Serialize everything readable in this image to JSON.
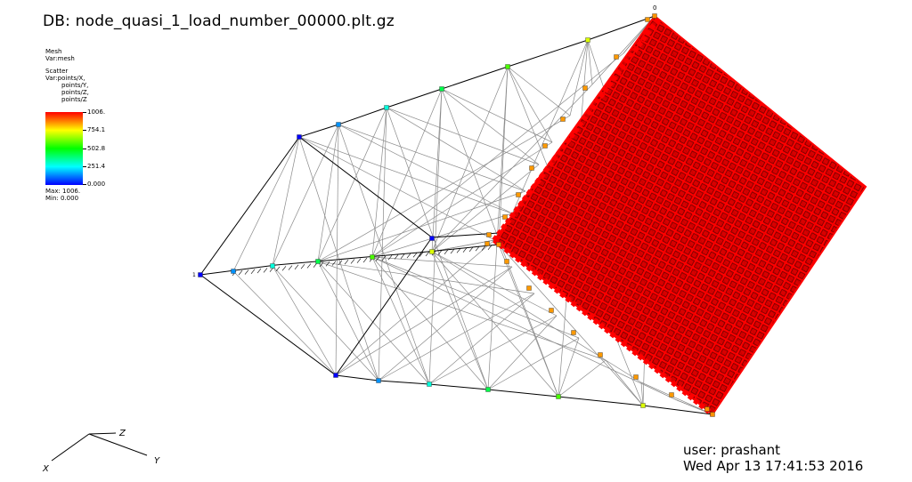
{
  "header": {
    "db_title": "DB: node_quasi_1_load_number_00000.plt.gz"
  },
  "legend": {
    "mesh_title": "Mesh",
    "mesh_var": "Var:mesh",
    "scatter_title": "Scatter",
    "scatter_vars": [
      "Var:points/X,",
      "points/Y,",
      "points/Z,",
      "points/Z"
    ],
    "ticks": [
      "1006.",
      "754.1",
      "502.8",
      "251.4",
      "0.000"
    ],
    "max_label": "Max: 1006.",
    "min_label": "Min: 0.000",
    "colors": {
      "high": "#ff0000",
      "mid_high": "#ffff00",
      "mid": "#00ff00",
      "mid_low": "#00ffff",
      "low": "#0000ff"
    }
  },
  "scene": {
    "corner_label": "0",
    "point_label": "1"
  },
  "triad": {
    "x": "X",
    "y": "Y",
    "z": "Z"
  },
  "footer": {
    "user": "user: prashant",
    "datetime": "Wed Apr 13 17:41:53 2016"
  }
}
